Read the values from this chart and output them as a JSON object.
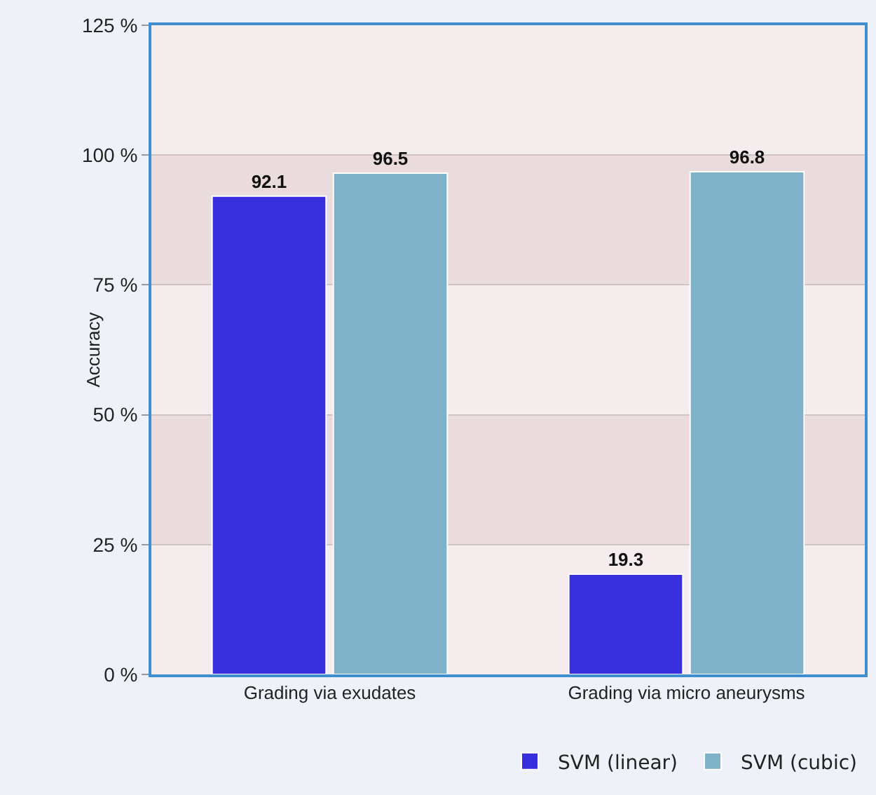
{
  "chart_data": {
    "type": "bar",
    "ylabel": "Accuracy",
    "categories": [
      "Grading via exudates",
      "Grading via micro aneurysms"
    ],
    "series": [
      {
        "name": "SVM (linear)",
        "color": "#3a2fdc",
        "values": [
          92.1,
          19.3
        ]
      },
      {
        "name": "SVM (cubic)",
        "color": "#7fb1c9",
        "values": [
          96.5,
          96.8
        ]
      }
    ],
    "ylim": [
      0,
      125
    ],
    "yticks": [
      {
        "value": 0,
        "label": "0 %"
      },
      {
        "value": 25,
        "label": "25 %"
      },
      {
        "value": 50,
        "label": "50 %"
      },
      {
        "value": 75,
        "label": "75 %"
      },
      {
        "value": 100,
        "label": "100 %"
      },
      {
        "value": 125,
        "label": "125 %"
      }
    ],
    "bands": [
      {
        "axis": "y",
        "from": 25,
        "to": 50,
        "color": "#eadcdc"
      },
      {
        "axis": "y",
        "from": 75,
        "to": 100,
        "color": "#eadcdc"
      }
    ],
    "data_labels": true,
    "grid": "y",
    "legend": "bottom right"
  }
}
